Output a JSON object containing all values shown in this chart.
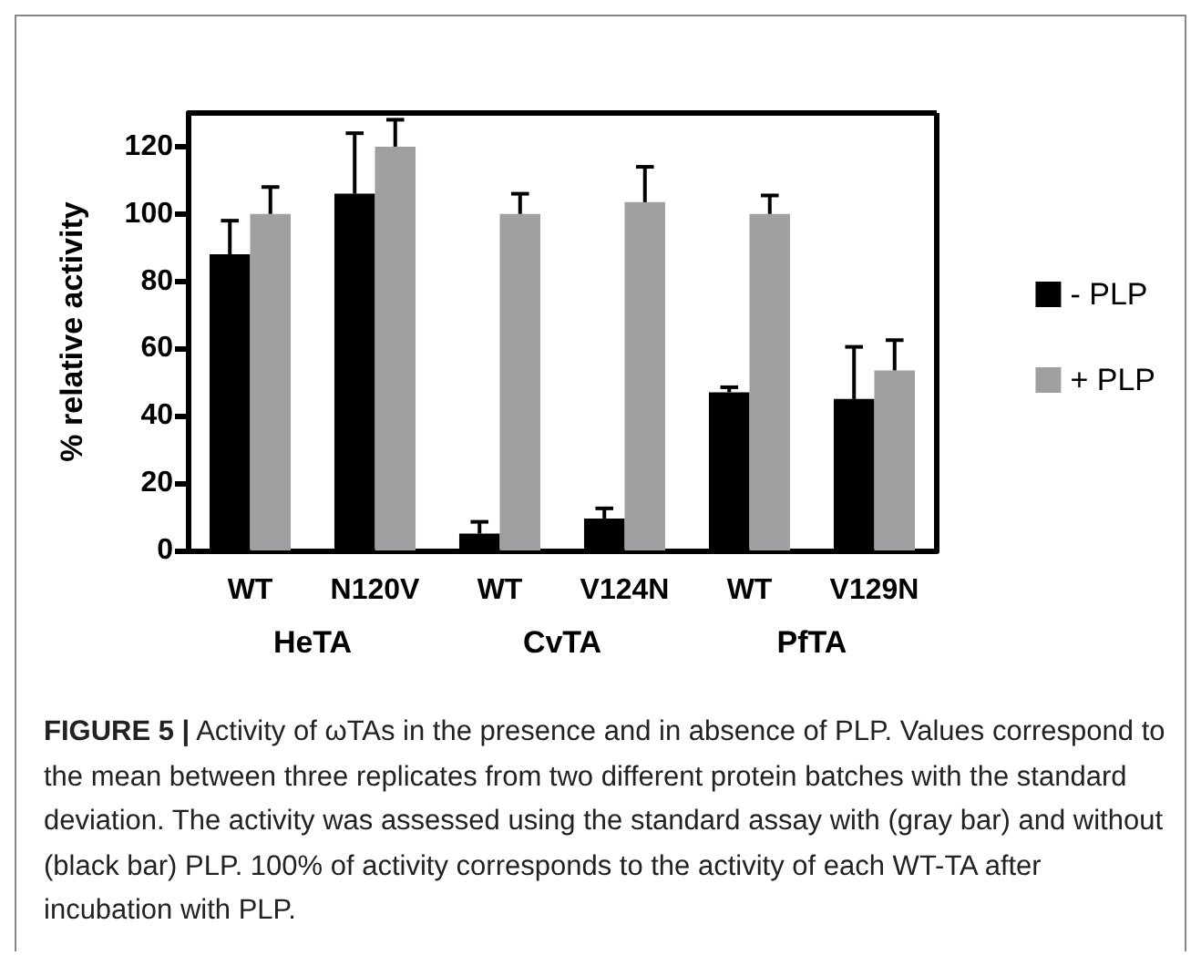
{
  "chart_data": {
    "type": "bar",
    "ylabel": "% relative activity",
    "categories": [
      "WT",
      "N120V",
      "WT",
      "V124N",
      "WT",
      "V129N"
    ],
    "series": [
      {
        "name": "- PLP",
        "color": "#000000",
        "values": [
          88,
          106,
          5,
          9.5,
          47,
          45
        ],
        "errors": [
          10,
          18,
          3.5,
          3,
          1.5,
          15.5
        ]
      },
      {
        "name": "+ PLP",
        "color": "#a0a0a2",
        "values": [
          100,
          120,
          100,
          103.5,
          100,
          53.5
        ],
        "errors": [
          8,
          8,
          6,
          10.5,
          5.5,
          9
        ]
      }
    ],
    "ylim": [
      0,
      130
    ],
    "yticks": [
      0,
      20,
      40,
      60,
      80,
      100,
      120
    ],
    "grid": false,
    "legend": "right",
    "annotations": [
      "HeTA",
      "CvTA",
      "PfTA",
      "FIGURE 5 | Activity of ωTAs in the presence and in absence of PLP. Values correspond to the mean between three replicates from two different protein batches with the standard deviation. The activity was assessed using the standard assay with (gray bar) and without (black bar) PLP. 100% of activity corresponds to the activity of each WT-TA after incubation with PLP."
    ]
  }
}
